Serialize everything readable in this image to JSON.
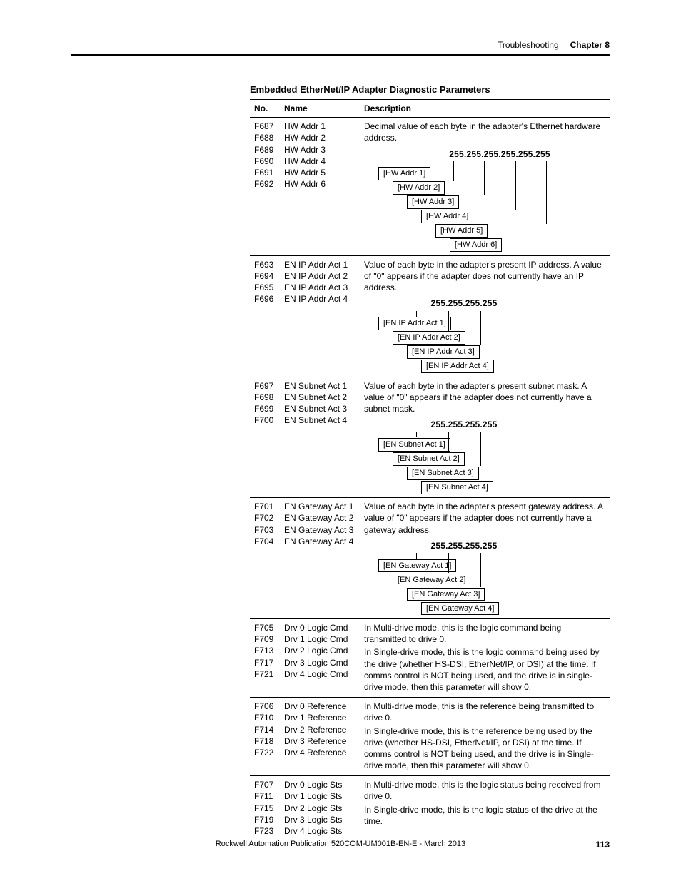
{
  "header": {
    "section": "Troubleshooting",
    "chapter": "Chapter 8"
  },
  "title": "Embedded EtherNet/IP Adapter Diagnostic Parameters",
  "columns": {
    "no": "No.",
    "name": "Name",
    "desc": "Description"
  },
  "footer": {
    "pub": "Rockwell Automation Publication 520COM-UM001B-EN-E - March 2013",
    "page": "113"
  },
  "groups": [
    {
      "rows": [
        {
          "no": "F687",
          "name": "HW Addr 1"
        },
        {
          "no": "F688",
          "name": "HW Addr 2"
        },
        {
          "no": "F689",
          "name": "HW Addr 3"
        },
        {
          "no": "F690",
          "name": "HW Addr 4"
        },
        {
          "no": "F691",
          "name": "HW Addr 5"
        },
        {
          "no": "F692",
          "name": "HW Addr 6"
        }
      ],
      "desc": "Decimal value of each byte in the adapter's Ethernet hardware address.",
      "ip_header": "255.255.255.255.255.255",
      "leaves": [
        "[HW Addr 1]",
        "[HW Addr 2]",
        "[HW Addr 3]",
        "[HW Addr 4]",
        "[HW Addr 5]",
        "[HW Addr 6]"
      ],
      "octets": 6
    },
    {
      "rows": [
        {
          "no": "F693",
          "name": "EN IP Addr Act 1"
        },
        {
          "no": "F694",
          "name": "EN IP Addr Act 2"
        },
        {
          "no": "F695",
          "name": "EN IP Addr Act 3"
        },
        {
          "no": "F696",
          "name": "EN IP Addr Act 4"
        }
      ],
      "desc": "Value of each byte in the adapter's present IP address. A value of \"0\" appears if the adapter does not currently have an IP address.",
      "ip_header": "255.255.255.255",
      "leaves": [
        "[EN IP Addr Act 1]",
        "[EN IP Addr Act 2]",
        "[EN IP Addr Act 3]",
        "[EN IP Addr Act 4]"
      ],
      "octets": 4
    },
    {
      "rows": [
        {
          "no": "F697",
          "name": "EN Subnet Act 1"
        },
        {
          "no": "F698",
          "name": "EN Subnet Act 2"
        },
        {
          "no": "F699",
          "name": "EN Subnet Act 3"
        },
        {
          "no": "F700",
          "name": "EN Subnet Act 4"
        }
      ],
      "desc": "Value of each byte in the adapter's present subnet mask. A value of \"0\" appears if the adapter does not currently have a subnet mask.",
      "ip_header": "255.255.255.255",
      "leaves": [
        "[EN Subnet Act 1]",
        "[EN Subnet Act 2]",
        "[EN Subnet Act 3]",
        "[EN Subnet Act 4]"
      ],
      "octets": 4
    },
    {
      "rows": [
        {
          "no": "F701",
          "name": "EN Gateway Act 1"
        },
        {
          "no": "F702",
          "name": "EN Gateway Act 2"
        },
        {
          "no": "F703",
          "name": "EN Gateway Act 3"
        },
        {
          "no": "F704",
          "name": "EN Gateway Act 4"
        }
      ],
      "desc": "Value of each byte in the adapter's present gateway address. A value of \"0\" appears if the adapter does not currently have a gateway address.",
      "ip_header": "255.255.255.255",
      "leaves": [
        "[EN Gateway Act 1]",
        "[EN Gateway Act 2]",
        "[EN Gateway Act 3]",
        "[EN Gateway Act 4]"
      ],
      "octets": 4
    },
    {
      "rows": [
        {
          "no": "F705",
          "name": "Drv 0 Logic Cmd"
        },
        {
          "no": "F709",
          "name": "Drv 1 Logic Cmd"
        },
        {
          "no": "F713",
          "name": "Drv 2 Logic Cmd"
        },
        {
          "no": "F717",
          "name": "Drv 3 Logic Cmd"
        },
        {
          "no": "F721",
          "name": "Drv 4 Logic Cmd"
        }
      ],
      "desc_lines": [
        "In Multi-drive mode, this is the logic command being transmitted to drive 0.",
        "In Single-drive mode, this is the logic command being used by the drive (whether HS-DSI, EtherNet/IP, or DSI) at the time. If comms control is NOT being used, and the drive is in single-drive mode, then this parameter will show 0."
      ]
    },
    {
      "rows": [
        {
          "no": "F706",
          "name": "Drv 0 Reference"
        },
        {
          "no": "F710",
          "name": "Drv 1 Reference"
        },
        {
          "no": "F714",
          "name": "Drv 2 Reference"
        },
        {
          "no": "F718",
          "name": "Drv 3 Reference"
        },
        {
          "no": "F722",
          "name": "Drv 4 Reference"
        }
      ],
      "desc_lines": [
        "In Multi-drive mode, this is the reference being transmitted to drive 0.",
        "In Single-drive mode, this is the reference being used by the drive (whether HS-DSI, EtherNet/IP, or DSI) at the time. If comms control is NOT being used, and the drive is in Single-drive mode, then this parameter will show 0."
      ]
    },
    {
      "rows": [
        {
          "no": "F707",
          "name": "Drv 0 Logic Sts"
        },
        {
          "no": "F711",
          "name": "Drv 1 Logic Sts"
        },
        {
          "no": "F715",
          "name": "Drv 2 Logic Sts"
        },
        {
          "no": "F719",
          "name": "Drv 3 Logic Sts"
        },
        {
          "no": "F723",
          "name": "Drv 4 Logic Sts"
        }
      ],
      "desc_lines": [
        "In Multi-drive mode, this is the logic status being received from drive 0.",
        "In Single-drive mode, this is the logic status of the drive at the time."
      ]
    }
  ]
}
